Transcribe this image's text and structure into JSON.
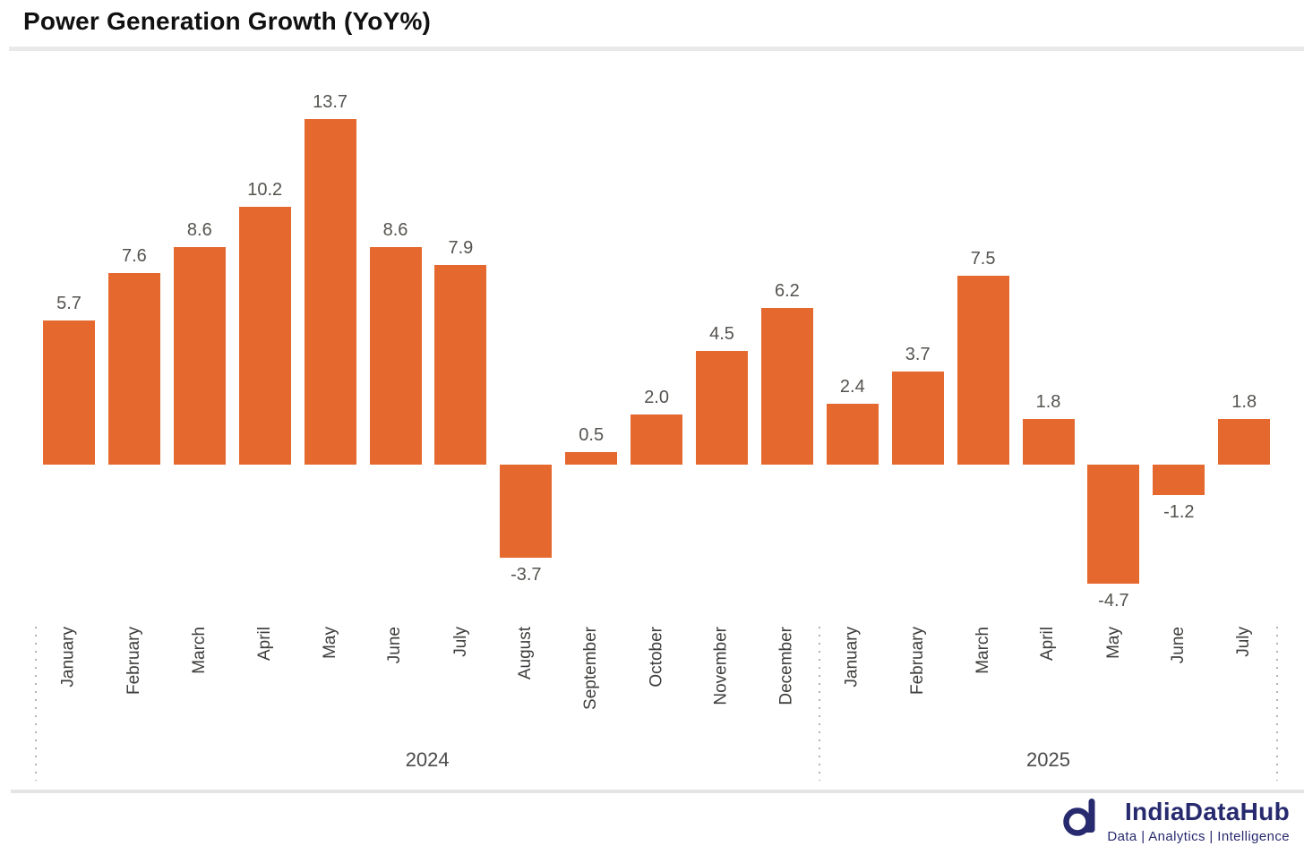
{
  "title": "Power Generation Growth (YoY%)",
  "chart_data": {
    "type": "bar",
    "title": "Power Generation Growth (YoY%)",
    "xlabel": "",
    "ylabel": "",
    "ylim": [
      -6,
      15.5
    ],
    "grid": false,
    "axis_lines": "hidden",
    "value_labels": true,
    "legend": "none",
    "bar_color": "#E5692F",
    "groups": [
      {
        "year": "2024",
        "categories": [
          "January",
          "February",
          "March",
          "April",
          "May",
          "June",
          "July",
          "August",
          "September",
          "October",
          "November",
          "December"
        ],
        "values": [
          5.7,
          7.6,
          8.6,
          10.2,
          13.7,
          8.6,
          7.9,
          -3.7,
          0.5,
          2.0,
          4.5,
          6.2
        ]
      },
      {
        "year": "2025",
        "categories": [
          "January",
          "February",
          "March",
          "April",
          "May",
          "June",
          "July"
        ],
        "values": [
          2.4,
          3.7,
          7.5,
          1.8,
          -4.7,
          -1.2,
          1.8
        ]
      }
    ]
  },
  "footer": {
    "brand": "IndiaDataHub",
    "tagline": "Data | Analytics | Intelligence",
    "brand_color": "#272A6E"
  }
}
